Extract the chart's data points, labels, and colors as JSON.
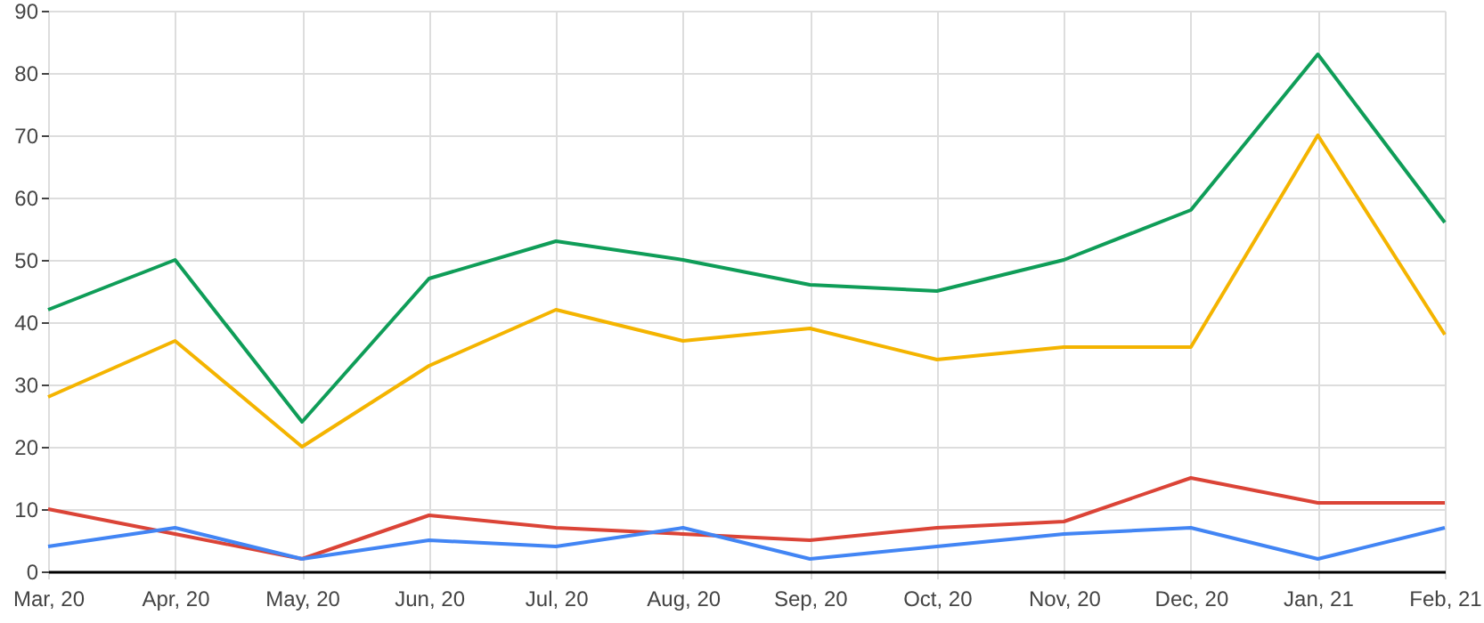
{
  "chart_data": {
    "type": "line",
    "categories": [
      "Mar, 20",
      "Apr, 20",
      "May, 20",
      "Jun, 20",
      "Jul, 20",
      "Aug, 20",
      "Sep, 20",
      "Oct, 20",
      "Nov, 20",
      "Dec, 20",
      "Jan, 21",
      "Feb, 21"
    ],
    "series": [
      {
        "color": "#0f9d58",
        "values": [
          42,
          50,
          24,
          47,
          53,
          50,
          46,
          45,
          50,
          58,
          83,
          56
        ]
      },
      {
        "color": "#f4b400",
        "values": [
          28,
          37,
          20,
          33,
          42,
          37,
          39,
          34,
          36,
          36,
          70,
          38
        ]
      },
      {
        "color": "#db4437",
        "values": [
          10,
          6,
          2,
          9,
          7,
          6,
          5,
          7,
          8,
          15,
          11,
          11
        ]
      },
      {
        "color": "#4285f4",
        "values": [
          4,
          7,
          2,
          5,
          4,
          7,
          2,
          4,
          6,
          7,
          2,
          7
        ]
      }
    ],
    "ylim": [
      0,
      90
    ],
    "yticks": [
      0,
      10,
      20,
      30,
      40,
      50,
      60,
      70,
      80,
      90
    ],
    "grid": true
  }
}
